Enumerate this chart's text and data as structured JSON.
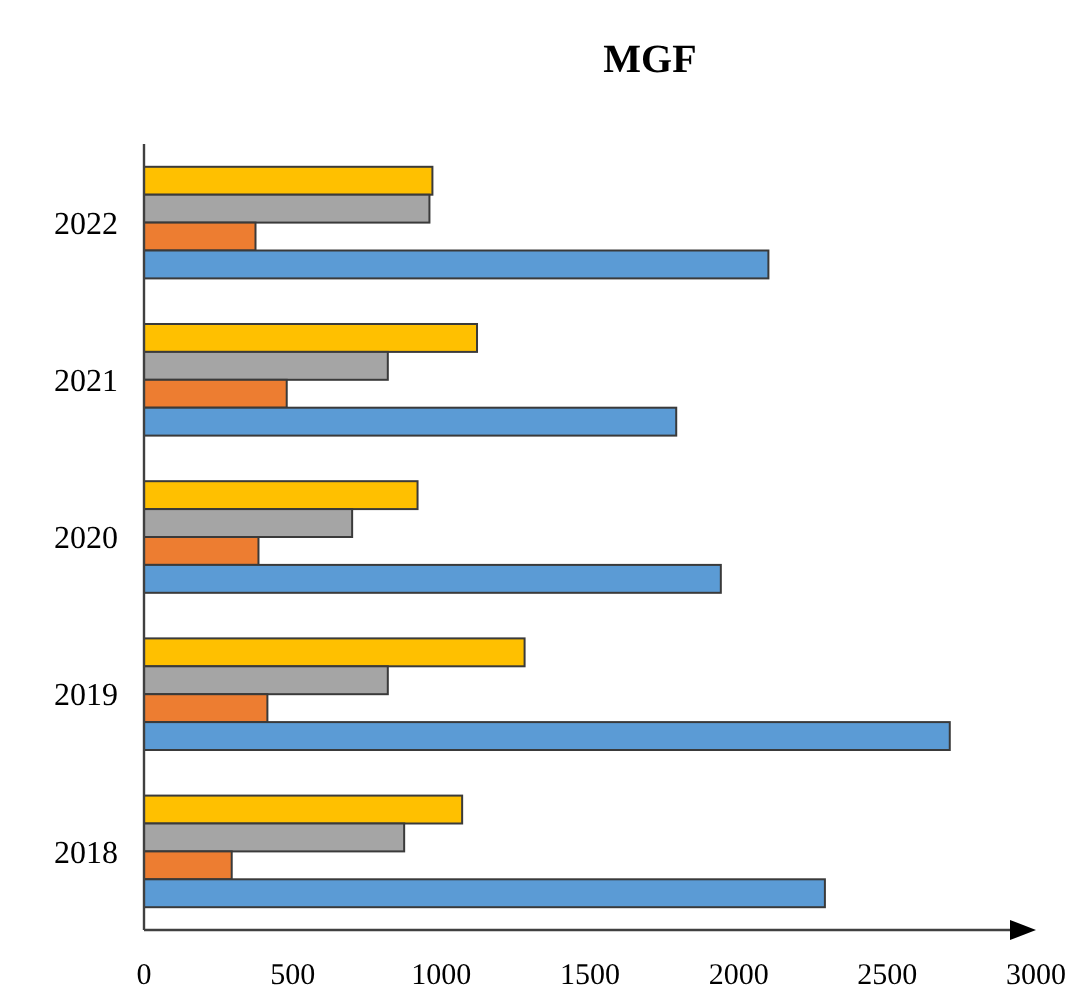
{
  "chart_data": {
    "type": "bar",
    "orientation": "horizontal",
    "title": "MGF",
    "categories": [
      "2022",
      "2021",
      "2020",
      "2019",
      "2018"
    ],
    "series": [
      {
        "color": "#ffc000",
        "values": [
          970,
          1120,
          920,
          1280,
          1070
        ]
      },
      {
        "color": "#a5a5a5",
        "values": [
          960,
          820,
          700,
          820,
          875
        ]
      },
      {
        "color": "#ed7d31",
        "values": [
          375,
          480,
          385,
          415,
          295
        ]
      },
      {
        "color": "#5b9bd5",
        "values": [
          2100,
          1790,
          1940,
          2710,
          2290
        ]
      }
    ],
    "xlim": [
      0,
      3000
    ],
    "xticks": [
      0,
      500,
      1000,
      1500,
      2000,
      2500,
      3000
    ]
  }
}
